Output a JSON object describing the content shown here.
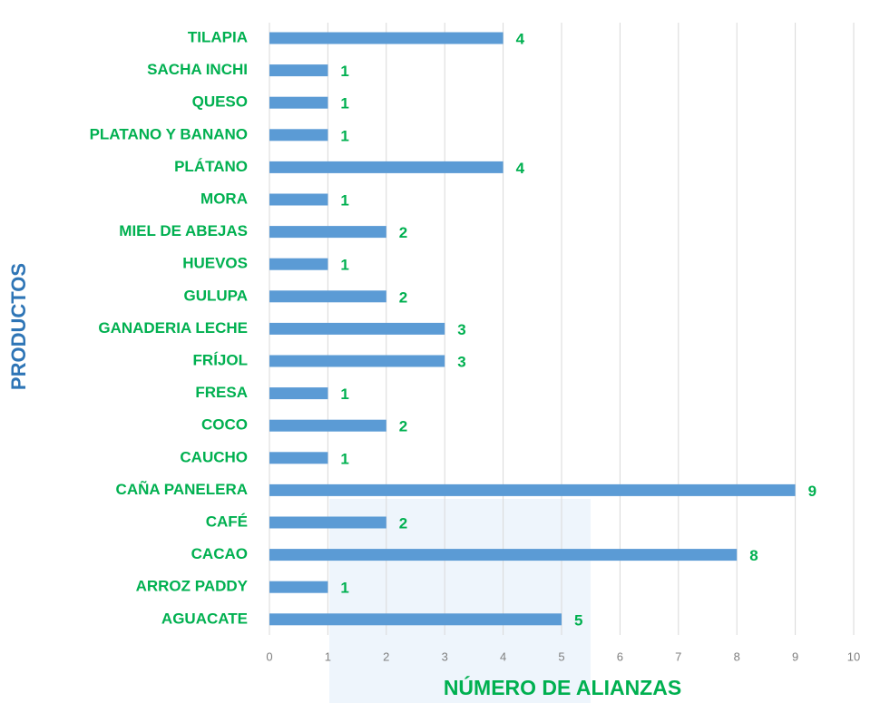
{
  "chart_data": {
    "type": "bar",
    "orientation": "horizontal",
    "x_label": "NÚMERO DE ALIANZAS",
    "y_label": "PRODUCTOS",
    "categories": [
      "TILAPIA",
      "SACHA INCHI",
      "QUESO",
      "PLATANO Y BANANO",
      "PLÁTANO",
      "MORA",
      "MIEL DE ABEJAS",
      "HUEVOS",
      "GULUPA",
      "GANADERIA LECHE",
      "FRÍJOL",
      "FRESA",
      "COCO",
      "CAUCHO",
      "CAÑA PANELERA",
      "CAFÉ",
      "CACAO",
      "ARROZ PADDY",
      "AGUACATE"
    ],
    "values": [
      4,
      1,
      1,
      1,
      4,
      1,
      2,
      1,
      2,
      3,
      3,
      1,
      2,
      1,
      9,
      2,
      8,
      1,
      5
    ],
    "color": "#5b9bd5",
    "xlim": [
      0,
      10
    ],
    "xticks": [
      0,
      1,
      2,
      3,
      4,
      5,
      6,
      7,
      8,
      9,
      10
    ],
    "grid": true
  }
}
